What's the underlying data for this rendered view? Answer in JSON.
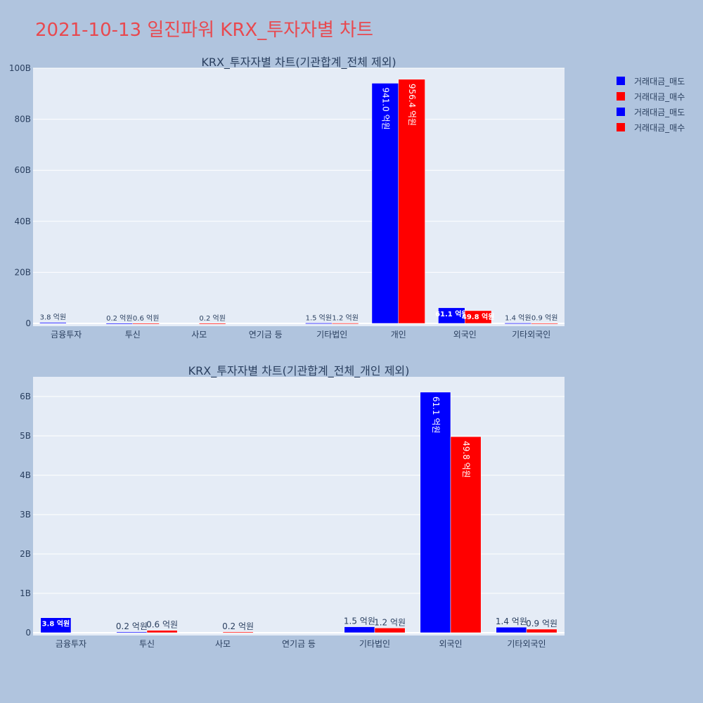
{
  "title": "2021-10-13 일진파워 KRX_투자자별 차트",
  "colors": {
    "sell": "#0000ff",
    "buy": "#ff0000",
    "plot_bg": "#e5ecf6",
    "page_bg": "#b0c4de",
    "title": "#e8494f"
  },
  "legend": {
    "placement": "top-right",
    "items": [
      {
        "label": "거래대금_매도",
        "color": "#0000ff"
      },
      {
        "label": "거래대금_매수",
        "color": "#ff0000"
      },
      {
        "label": "거래대금_매도",
        "color": "#0000ff"
      },
      {
        "label": "거래대금_매수",
        "color": "#ff0000"
      }
    ]
  },
  "chart_data": [
    {
      "type": "bar",
      "title": "KRX_투자자별 차트(기관합계_전체 제외)",
      "categories": [
        "금융투자",
        "투신",
        "사모",
        "연기금 등",
        "기타법인",
        "개인",
        "외국인",
        "기타외국인"
      ],
      "ylim": [
        0,
        100000000000
      ],
      "yticks": [
        0,
        20000000000,
        40000000000,
        60000000000,
        80000000000,
        100000000000
      ],
      "ytick_labels": [
        "0",
        "20B",
        "40B",
        "60B",
        "80B",
        "100B"
      ],
      "grid": true,
      "series": [
        {
          "name": "거래대금_매도",
          "color": "#0000ff",
          "values": [
            380000000,
            20000000,
            0,
            0,
            150000000,
            94100000000,
            6110000000,
            140000000
          ],
          "labels": [
            "3.8 억원",
            "0.2 억원",
            "",
            "",
            "1.5 억원",
            "941.0 억원",
            "61.1 억원",
            "1.4 억원"
          ]
        },
        {
          "name": "거래대금_매수",
          "color": "#ff0000",
          "values": [
            0,
            60000000,
            20000000,
            0,
            120000000,
            95640000000,
            4980000000,
            90000000
          ],
          "labels": [
            "",
            "0.6 억원",
            "0.2 억원",
            "",
            "1.2 억원",
            "956.4 억원",
            "49.8 억원",
            "0.9 억원"
          ]
        }
      ]
    },
    {
      "type": "bar",
      "title": "KRX_투자자별 차트(기관합계_전체_개인 제외)",
      "categories": [
        "금융투자",
        "투신",
        "사모",
        "연기금 등",
        "기타법인",
        "외국인",
        "기타외국인"
      ],
      "ylim": [
        0,
        6500000000
      ],
      "yticks": [
        0,
        1000000000,
        2000000000,
        3000000000,
        4000000000,
        5000000000,
        6000000000
      ],
      "ytick_labels": [
        "0",
        "1B",
        "2B",
        "3B",
        "4B",
        "5B",
        "6B"
      ],
      "grid": true,
      "series": [
        {
          "name": "거래대금_매도",
          "color": "#0000ff",
          "values": [
            380000000,
            20000000,
            0,
            0,
            150000000,
            6110000000,
            140000000
          ],
          "labels": [
            "3.8 억원",
            "0.2 억원",
            "",
            "",
            "1.5 억원",
            "61.1 억원",
            "1.4 억원"
          ]
        },
        {
          "name": "거래대금_매수",
          "color": "#ff0000",
          "values": [
            0,
            60000000,
            20000000,
            0,
            120000000,
            4980000000,
            90000000
          ],
          "labels": [
            "",
            "0.6 억원",
            "0.2 억원",
            "",
            "1.2 억원",
            "49.8 억원",
            "0.9 억원"
          ]
        }
      ]
    }
  ]
}
